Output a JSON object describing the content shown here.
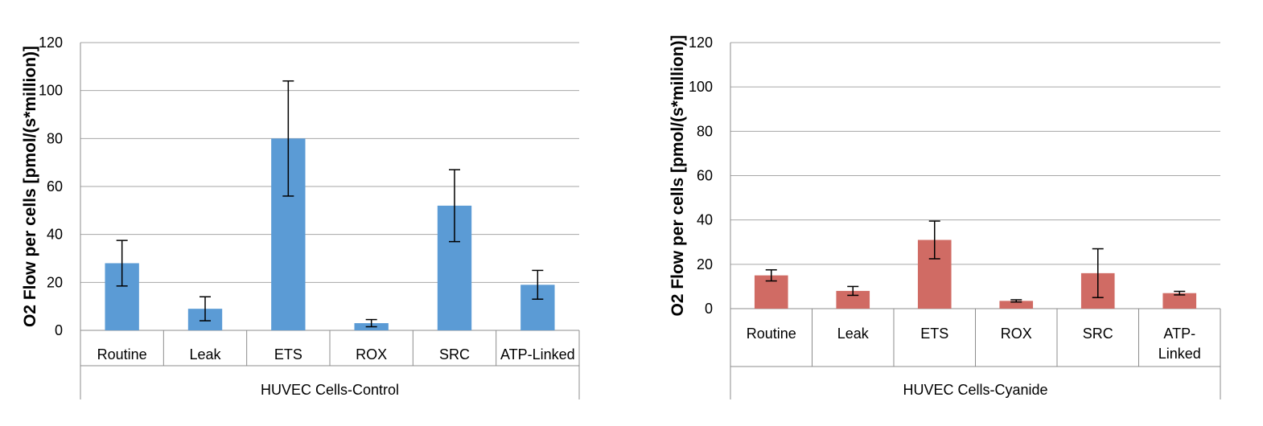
{
  "chart_data": [
    {
      "type": "bar",
      "ylabel": "O2 Flow per cells [pmol/(s*million)]",
      "group_label": "HUVEC Cells-Control",
      "categories": [
        [
          "Routine"
        ],
        [
          "Leak"
        ],
        [
          "ETS"
        ],
        [
          "ROX"
        ],
        [
          "SRC"
        ],
        [
          "ATP-Linked"
        ]
      ],
      "values": [
        28,
        9,
        80,
        3,
        52,
        19
      ],
      "error": [
        9.5,
        5,
        24,
        1.5,
        15,
        6
      ],
      "ylim": [
        0,
        120
      ],
      "yticks": [
        "0",
        "20",
        "40",
        "60",
        "80",
        "100",
        "120"
      ],
      "grid": true,
      "color": "#5b9bd5"
    },
    {
      "type": "bar",
      "ylabel": "O2 Flow per cells [pmol/(s*million)]",
      "group_label": "HUVEC Cells-Cyanide",
      "categories": [
        [
          "Routine"
        ],
        [
          "Leak"
        ],
        [
          "ETS"
        ],
        [
          "ROX"
        ],
        [
          "SRC"
        ],
        [
          "ATP-",
          "Linked"
        ]
      ],
      "values": [
        15,
        8,
        31,
        3.5,
        16,
        7
      ],
      "error": [
        2.5,
        2,
        8.5,
        0.5,
        11,
        0.8
      ],
      "ylim": [
        0,
        120
      ],
      "yticks": [
        "0",
        "20",
        "40",
        "60",
        "80",
        "100",
        "120"
      ],
      "grid": true,
      "color": "#d06b64"
    }
  ]
}
